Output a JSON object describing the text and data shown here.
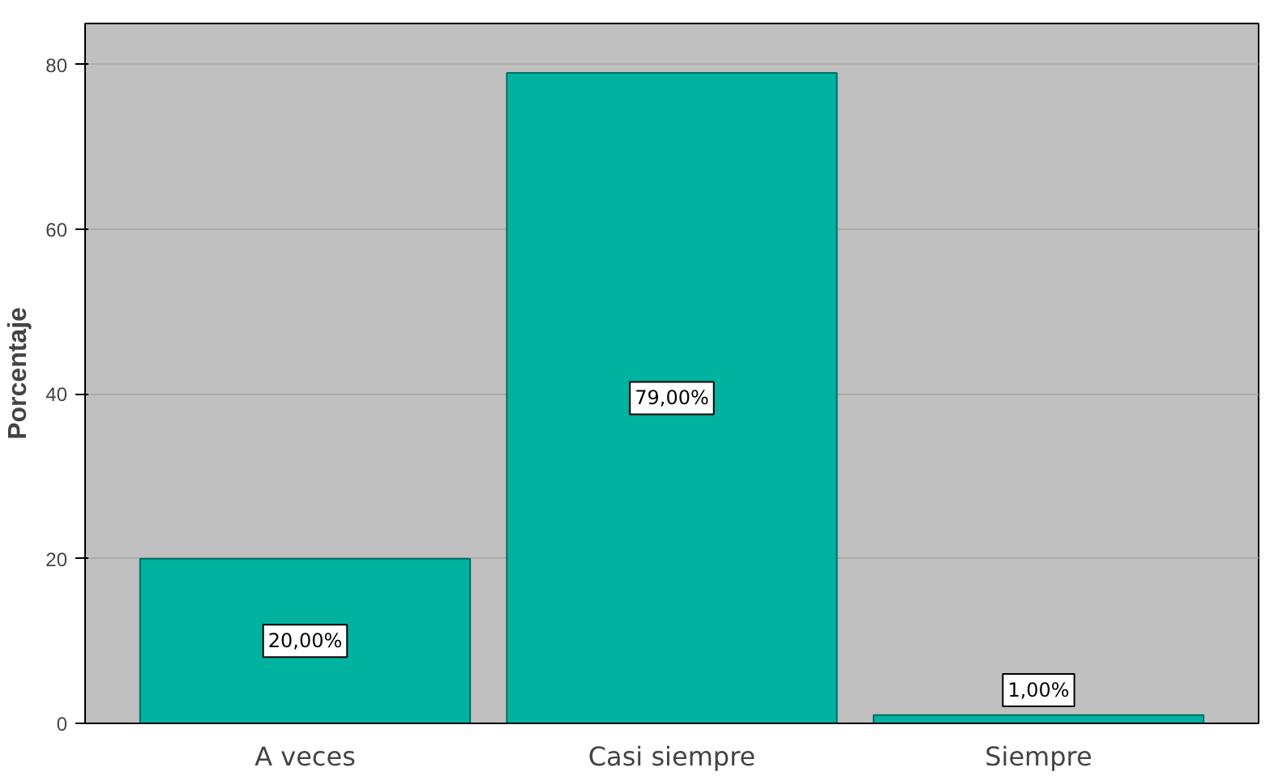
{
  "chart_data": {
    "type": "bar",
    "ylabel": "Porcentaje",
    "categories": [
      "A veces",
      "Casi siempre",
      "Siempre"
    ],
    "values": [
      20,
      79,
      1
    ],
    "value_labels": [
      "20,00%",
      "79,00%",
      "1,00%"
    ],
    "color": "#00b3a0",
    "ylim": [
      0,
      85
    ],
    "yticks": [
      0,
      20,
      40,
      60,
      80
    ],
    "grid": "y"
  }
}
